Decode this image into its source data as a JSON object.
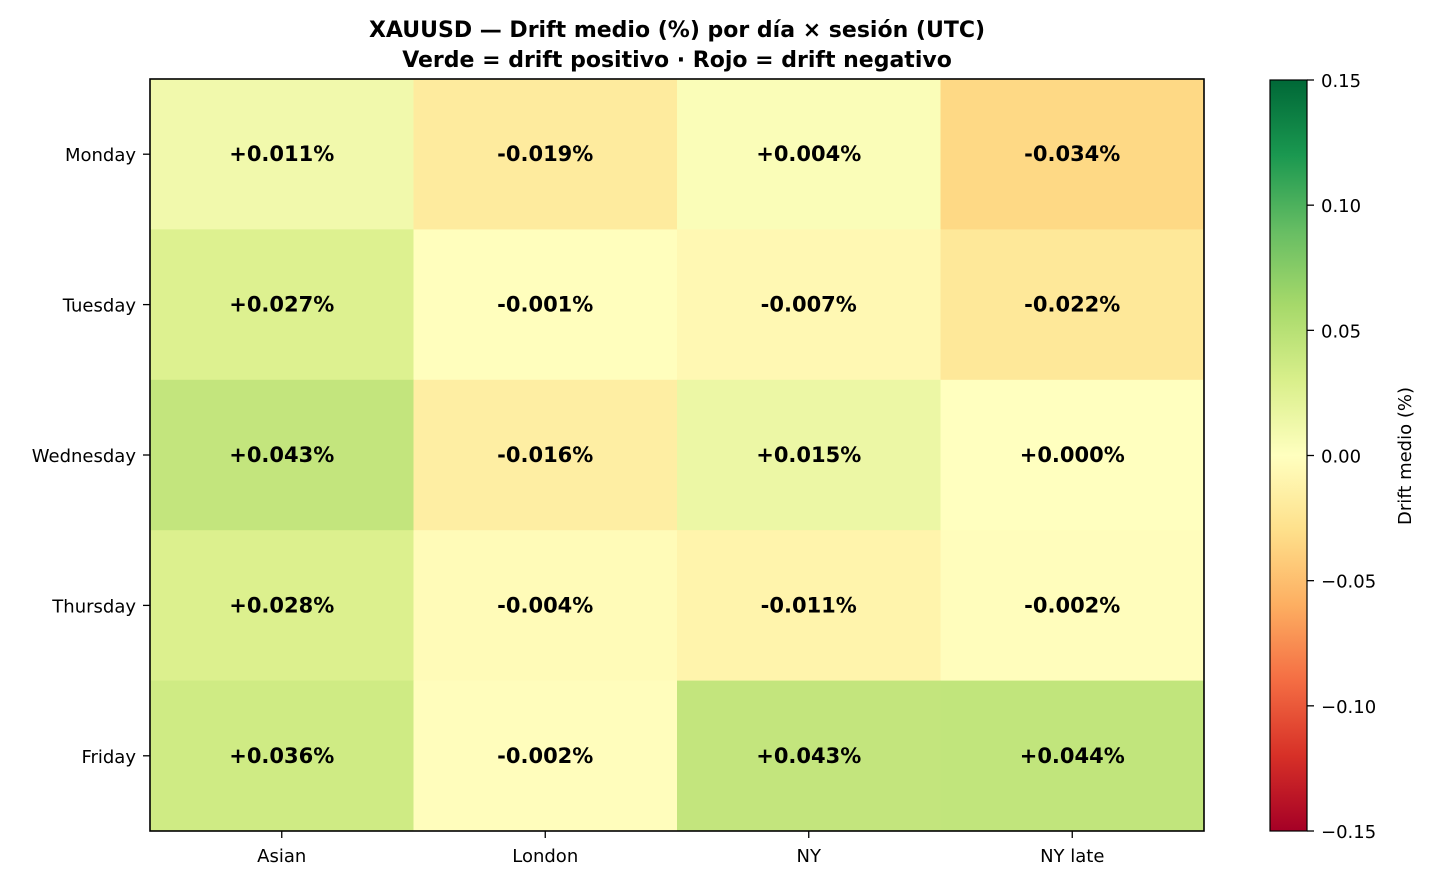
{
  "chart_data": {
    "type": "heatmap",
    "title": "XAUUSD — Drift medio (%) por día × sesión (UTC)",
    "subtitle": "Verde = drift positivo · Rojo = drift negativo",
    "rows": [
      "Monday",
      "Tuesday",
      "Wednesday",
      "Thursday",
      "Friday"
    ],
    "columns": [
      "Asian",
      "London",
      "NY",
      "NY late"
    ],
    "values": [
      [
        0.011,
        -0.019,
        0.004,
        -0.034
      ],
      [
        0.027,
        -0.001,
        -0.007,
        -0.022
      ],
      [
        0.043,
        -0.016,
        0.015,
        0.0
      ],
      [
        0.028,
        -0.004,
        -0.011,
        -0.002
      ],
      [
        0.036,
        -0.002,
        0.043,
        0.044
      ]
    ],
    "cell_labels": [
      [
        "+0.011%",
        "-0.019%",
        "+0.004%",
        "-0.034%"
      ],
      [
        "+0.027%",
        "-0.001%",
        "-0.007%",
        "-0.022%"
      ],
      [
        "+0.043%",
        "-0.016%",
        "+0.015%",
        "+0.000%"
      ],
      [
        "+0.028%",
        "-0.004%",
        "-0.011%",
        "-0.002%"
      ],
      [
        "+0.036%",
        "-0.002%",
        "+0.043%",
        "+0.044%"
      ]
    ],
    "colormap": "RdYlGn",
    "vmin": -0.15,
    "vmax": 0.15,
    "colorbar": {
      "label": "Drift medio (%)",
      "ticks": [
        0.15,
        0.1,
        0.05,
        0.0,
        -0.05,
        -0.1,
        -0.15
      ],
      "tick_labels": [
        "0.15",
        "0.10",
        "0.05",
        "0.00",
        "−0.05",
        "−0.10",
        "−0.15"
      ]
    },
    "colors": {
      "rdylgn_stops": [
        "#a50026",
        "#d73027",
        "#f46d43",
        "#fdae61",
        "#fee08b",
        "#ffffbf",
        "#d9ef8b",
        "#a6d96a",
        "#66bd63",
        "#1a9850",
        "#006837"
      ]
    }
  }
}
